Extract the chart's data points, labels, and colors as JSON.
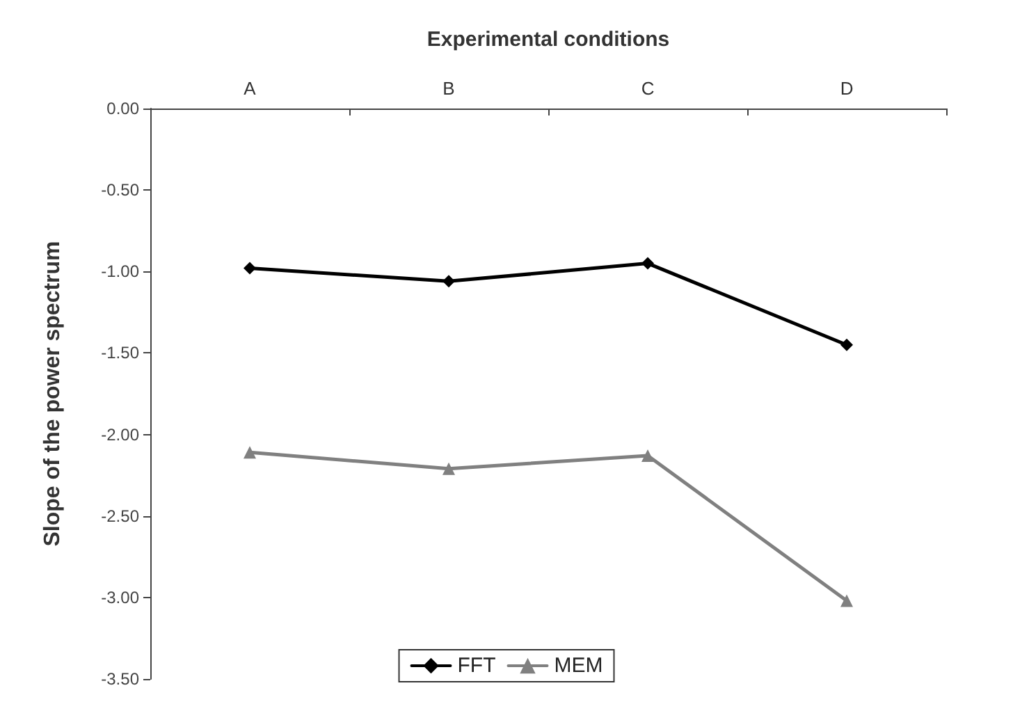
{
  "chart_data": {
    "type": "line",
    "xlabel": "Experimental conditions",
    "ylabel": "Slope of the power spectrum",
    "categories": [
      "A",
      "B",
      "C",
      "D"
    ],
    "series": [
      {
        "name": "FFT",
        "color": "#000000",
        "marker": "diamond",
        "values": [
          -0.98,
          -1.06,
          -0.95,
          -1.45
        ]
      },
      {
        "name": "MEM",
        "color": "#808080",
        "marker": "triangle",
        "values": [
          -2.11,
          -2.21,
          -2.13,
          -3.02
        ]
      }
    ],
    "ylim": [
      -3.5,
      0
    ],
    "yticks": [
      {
        "value": 0,
        "label": "0.00"
      },
      {
        "value": -0.5,
        "label": "-0.50"
      },
      {
        "value": -1,
        "label": "-1.00"
      },
      {
        "value": -1.5,
        "label": "-1.50"
      },
      {
        "value": -2,
        "label": "-2.00"
      },
      {
        "value": -2.5,
        "label": "-2.50"
      },
      {
        "value": -3,
        "label": "-3.00"
      },
      {
        "value": -3.5,
        "label": "-3.50"
      }
    ],
    "grid": false,
    "legend": "bottom",
    "line_style": "solid"
  }
}
